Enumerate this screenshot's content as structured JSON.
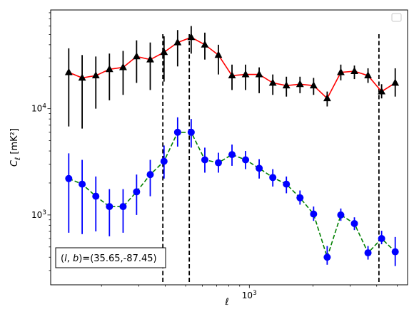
{
  "chart_data": {
    "type": "line",
    "xscale": "log",
    "yscale": "log",
    "xlabel": "ℓ",
    "ylabel": "C_ℓ [mK²]",
    "xlim": [
      115,
      5600
    ],
    "ylim": [
      220,
      85000
    ],
    "x_tick_labels": [
      {
        "value": 1000,
        "base": "10",
        "exp": "3"
      }
    ],
    "y_tick_labels": [
      {
        "value": 1000,
        "base": "10",
        "exp": "3"
      },
      {
        "value": 10000,
        "base": "10",
        "exp": "4"
      }
    ],
    "annotation": "(l, b)=(35.65,-87.45)",
    "legend_placement": "top-right",
    "vlines": [
      390,
      520,
      4100
    ],
    "series": [
      {
        "color": "#ff0000",
        "marker": "triangle",
        "marker_color": "#000000",
        "err_color": "#000000",
        "linestyle": "solid",
        "x": [
          140,
          162,
          188,
          218,
          253,
          293,
          340,
          395,
          458,
          531,
          616,
          714,
          828,
          960,
          1113,
          1291,
          1497,
          1736,
          2013,
          2334,
          2707,
          3139,
          3640,
          4221,
          4895
        ],
        "y": [
          22000,
          19500,
          20500,
          23500,
          24500,
          31000,
          29000,
          34000,
          42000,
          47000,
          40000,
          32000,
          20500,
          21000,
          21000,
          17500,
          16500,
          17000,
          16500,
          12500,
          22000,
          22500,
          20500,
          14500,
          17500
        ],
        "yerr_low": [
          6800,
          6500,
          10000,
          12000,
          13500,
          17500,
          15000,
          18000,
          25000,
          33000,
          29000,
          21000,
          15000,
          15000,
          14000,
          13500,
          13000,
          14000,
          13500,
          10500,
          18500,
          19000,
          17500,
          12500,
          13000
        ],
        "yerr_high": [
          37000,
          32000,
          31000,
          33000,
          35000,
          44000,
          42000,
          48000,
          55000,
          60000,
          52000,
          40000,
          26000,
          26000,
          24500,
          21000,
          20000,
          20000,
          19500,
          14500,
          26000,
          25500,
          24000,
          17000,
          24000
        ]
      },
      {
        "color": "#008000",
        "marker": "circle",
        "marker_color": "#0000ff",
        "err_color": "#0000ff",
        "linestyle": "dashed",
        "x": [
          140,
          162,
          188,
          218,
          253,
          293,
          340,
          395,
          458,
          531,
          616,
          714,
          828,
          960,
          1113,
          1291,
          1497,
          1736,
          2013,
          2334,
          2707,
          3139,
          3640,
          4221,
          4895
        ],
        "y": [
          2200,
          1950,
          1500,
          1200,
          1200,
          1650,
          2400,
          3200,
          6000,
          6000,
          3300,
          3100,
          3700,
          3300,
          2750,
          2250,
          1950,
          1450,
          1020,
          400,
          1000,
          830,
          440,
          600,
          450
        ],
        "yerr_low": [
          680,
          660,
          700,
          630,
          680,
          1000,
          1500,
          2200,
          4400,
          4300,
          2500,
          2500,
          2900,
          2700,
          2200,
          1850,
          1600,
          1250,
          880,
          340,
          880,
          720,
          380,
          530,
          330
        ],
        "yerr_high": [
          3800,
          3300,
          2300,
          1750,
          1750,
          2400,
          3300,
          4500,
          8300,
          8000,
          4300,
          3850,
          4600,
          4000,
          3350,
          2700,
          2300,
          1700,
          1200,
          510,
          1150,
          950,
          510,
          710,
          620
        ]
      }
    ]
  }
}
